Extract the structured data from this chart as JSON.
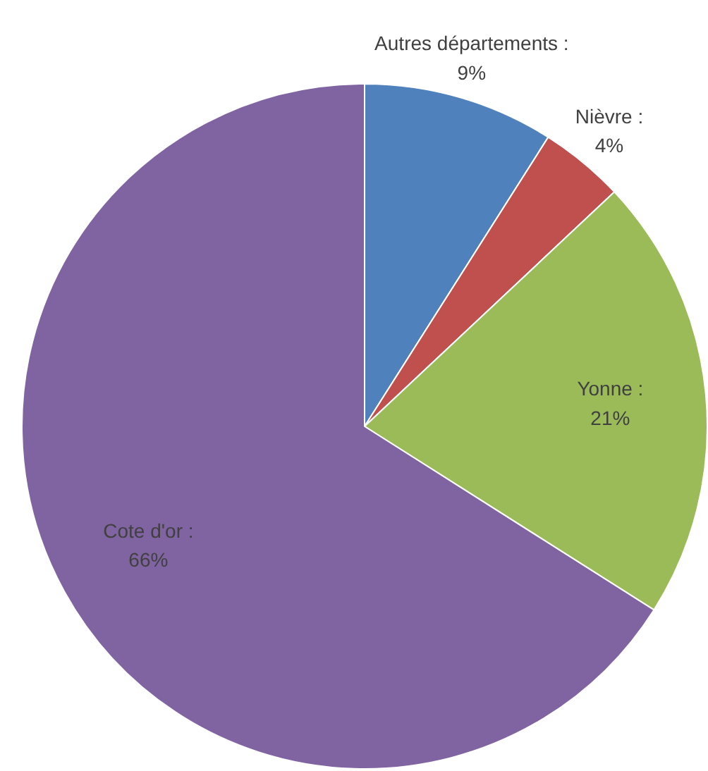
{
  "chart_data": {
    "type": "pie",
    "categories": [
      "Autres départements",
      "Nièvre",
      "Yonne",
      "Cote d'or"
    ],
    "values": [
      9,
      4,
      21,
      66
    ],
    "colors": [
      "#4f81bd",
      "#c0504d",
      "#9bbb59",
      "#8064a2"
    ],
    "value_labels": [
      ": 9%",
      ": 4%",
      ": 21%",
      ": 66%"
    ]
  }
}
